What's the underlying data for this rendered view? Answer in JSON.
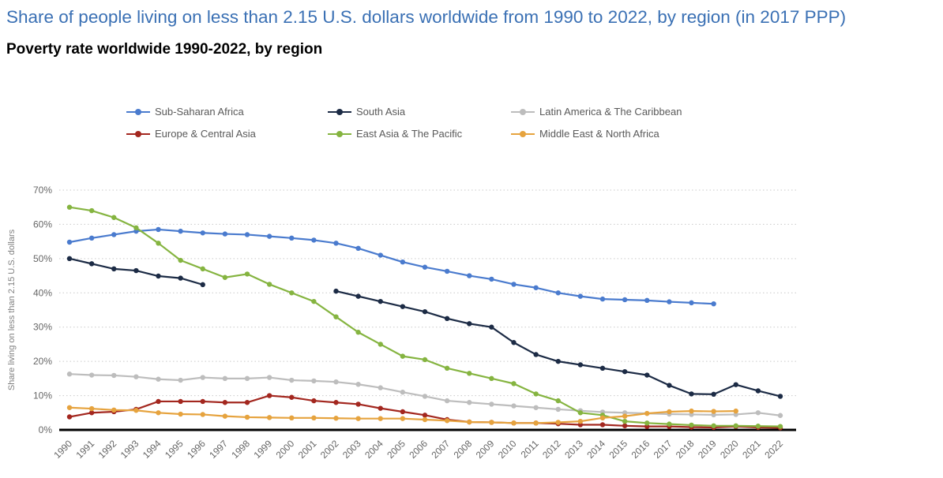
{
  "header": {
    "title": "Share of people living on less than 2.15 U.S. dollars worldwide from 1990 to 2022, by region (in 2017 PPP)",
    "subtitle": "Poverty rate worldwide 1990-2022, by region"
  },
  "colors": {
    "title": "#3a70b4",
    "subtitle": "#000000",
    "axis_text": "#666666",
    "y_axis_title_text": "#7f7f7f",
    "gridline": "#c9c9c9",
    "baseline": "#000000",
    "legend_text": "#595959"
  },
  "chart_data": {
    "type": "line",
    "title": "Share of people living on less than 2.15 U.S. dollars worldwide from 1990 to 2022, by region (in 2017 PPP)",
    "subtitle": "Poverty rate worldwide 1990-2022, by region",
    "xlabel": "",
    "ylabel": "Share living on less than 2.15 U.S. dollars",
    "ylim": [
      0,
      70
    ],
    "y_ticks": [
      0,
      10,
      20,
      30,
      40,
      50,
      60,
      70
    ],
    "y_tick_suffix": "%",
    "grid": "dotted-horizontal",
    "legend_position": "top",
    "marker": "circle",
    "x": [
      1990,
      1991,
      1992,
      1993,
      1994,
      1995,
      1996,
      1997,
      1998,
      1999,
      2000,
      2001,
      2002,
      2003,
      2004,
      2005,
      2006,
      2007,
      2008,
      2009,
      2010,
      2011,
      2012,
      2013,
      2014,
      2015,
      2016,
      2017,
      2018,
      2019,
      2020,
      2021,
      2022
    ],
    "series": [
      {
        "name": "Sub-Saharan Africa",
        "color": "#4a7bce",
        "values": [
          54.8,
          56.0,
          57.0,
          58.0,
          58.5,
          58.0,
          57.5,
          57.2,
          57.0,
          56.5,
          56.0,
          55.4,
          54.5,
          53.0,
          51.0,
          49.0,
          47.5,
          46.3,
          45.0,
          44.0,
          42.5,
          41.5,
          40.0,
          39.0,
          38.2,
          38.0,
          37.8,
          37.4,
          37.1,
          36.8,
          null,
          null,
          null
        ]
      },
      {
        "name": "South Asia",
        "color": "#1c2b45",
        "values": [
          50.0,
          48.5,
          47.0,
          46.5,
          44.9,
          44.3,
          42.4,
          null,
          null,
          null,
          null,
          null,
          40.5,
          39.0,
          37.5,
          36.0,
          34.5,
          32.5,
          31.0,
          30.0,
          25.5,
          22.0,
          20.0,
          19.0,
          18.0,
          17.0,
          16.0,
          13.0,
          10.5,
          10.4,
          13.2,
          11.4,
          9.8
        ]
      },
      {
        "name": "Latin America & The Caribbean",
        "color": "#bdbdbd",
        "values": [
          16.3,
          16.0,
          15.9,
          15.5,
          14.8,
          14.5,
          15.3,
          15.0,
          15.0,
          15.3,
          14.5,
          14.3,
          14.0,
          13.3,
          12.3,
          11.0,
          9.8,
          8.5,
          8.0,
          7.5,
          7.0,
          6.5,
          6.0,
          5.6,
          5.2,
          5.0,
          4.8,
          4.6,
          4.5,
          4.4,
          4.5,
          5.0,
          4.2
        ]
      },
      {
        "name": "Europe & Central Asia",
        "color": "#a3271f",
        "values": [
          3.8,
          5.0,
          5.3,
          6.0,
          8.3,
          8.3,
          8.3,
          8.0,
          8.0,
          10.0,
          9.5,
          8.5,
          8.0,
          7.5,
          6.3,
          5.3,
          4.3,
          3.0,
          2.3,
          2.2,
          2.0,
          2.0,
          1.8,
          1.5,
          1.5,
          1.2,
          1.0,
          1.0,
          0.8,
          0.7,
          1.0,
          0.7,
          0.6
        ]
      },
      {
        "name": "East Asia & The Pacific",
        "color": "#85b440",
        "values": [
          65.0,
          64.0,
          62.0,
          59.0,
          54.5,
          49.5,
          47.0,
          44.5,
          45.5,
          42.5,
          40.0,
          37.5,
          33.0,
          28.5,
          25.0,
          21.5,
          20.5,
          18.0,
          16.5,
          15.0,
          13.5,
          10.5,
          8.5,
          5.0,
          4.3,
          2.5,
          2.0,
          1.7,
          1.4,
          1.2,
          1.2,
          1.1,
          1.0
        ]
      },
      {
        "name": "Middle East & North Africa",
        "color": "#e6a33e",
        "values": [
          6.5,
          6.2,
          5.8,
          5.7,
          5.0,
          4.6,
          4.5,
          4.0,
          3.7,
          3.6,
          3.5,
          3.5,
          3.4,
          3.3,
          3.3,
          3.3,
          3.0,
          2.7,
          2.3,
          2.2,
          2.0,
          2.0,
          2.2,
          2.5,
          3.5,
          4.0,
          4.8,
          5.3,
          5.5,
          5.4,
          5.5,
          null,
          null
        ]
      }
    ]
  }
}
